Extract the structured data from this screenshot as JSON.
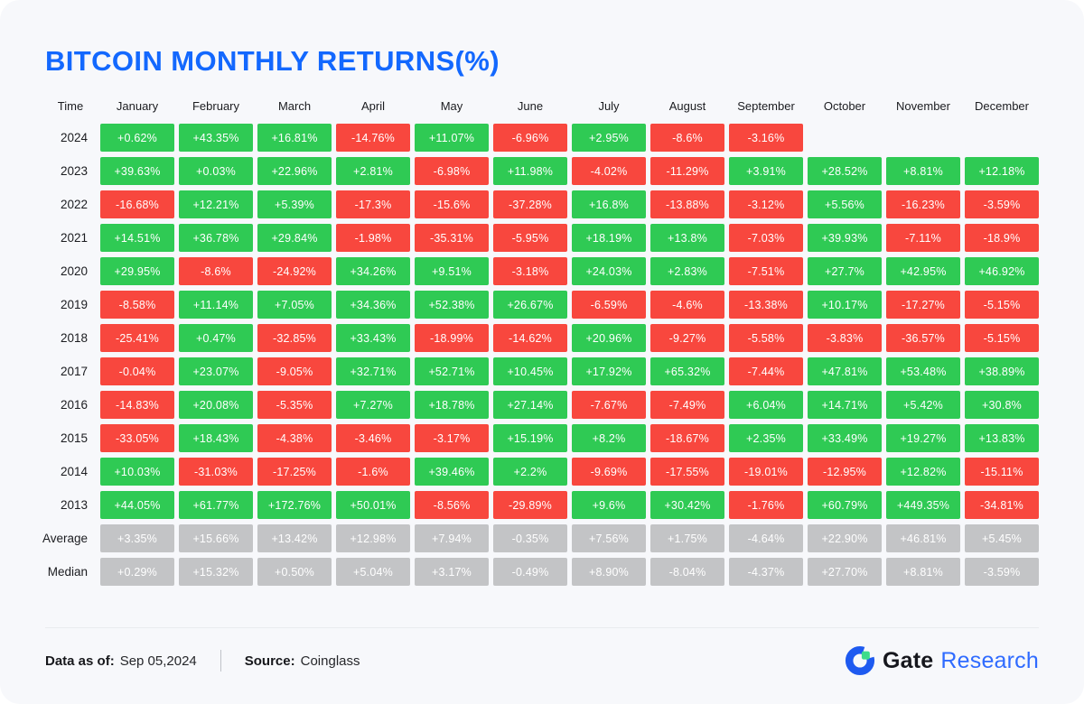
{
  "title": "BITCOIN MONTHLY RETURNS(%)",
  "colors": {
    "positive": "#2fca54",
    "negative": "#f8473e",
    "summary": "#c3c4c6",
    "title_blue": "#1368fe",
    "background": "#f7f8fb",
    "logo_blue": "#1e5af0",
    "logo_green": "#3edc8b"
  },
  "chart_data": {
    "type": "table",
    "title": "BITCOIN MONTHLY RETURNS(%)",
    "time_label": "Time",
    "months": [
      "January",
      "February",
      "March",
      "April",
      "May",
      "June",
      "July",
      "August",
      "September",
      "October",
      "November",
      "December"
    ],
    "rows": [
      {
        "label": "2024",
        "values": [
          "+0.62%",
          "+43.35%",
          "+16.81%",
          "-14.76%",
          "+11.07%",
          "-6.96%",
          "+2.95%",
          "-8.6%",
          "-3.16%",
          null,
          null,
          null
        ]
      },
      {
        "label": "2023",
        "values": [
          "+39.63%",
          "+0.03%",
          "+22.96%",
          "+2.81%",
          "-6.98%",
          "+11.98%",
          "-4.02%",
          "-11.29%",
          "+3.91%",
          "+28.52%",
          "+8.81%",
          "+12.18%"
        ]
      },
      {
        "label": "2022",
        "values": [
          "-16.68%",
          "+12.21%",
          "+5.39%",
          "-17.3%",
          "-15.6%",
          "-37.28%",
          "+16.8%",
          "-13.88%",
          "-3.12%",
          "+5.56%",
          "-16.23%",
          "-3.59%"
        ]
      },
      {
        "label": "2021",
        "values": [
          "+14.51%",
          "+36.78%",
          "+29.84%",
          "-1.98%",
          "-35.31%",
          "-5.95%",
          "+18.19%",
          "+13.8%",
          "-7.03%",
          "+39.93%",
          "-7.11%",
          "-18.9%"
        ]
      },
      {
        "label": "2020",
        "values": [
          "+29.95%",
          "-8.6%",
          "-24.92%",
          "+34.26%",
          "+9.51%",
          "-3.18%",
          "+24.03%",
          "+2.83%",
          "-7.51%",
          "+27.7%",
          "+42.95%",
          "+46.92%"
        ]
      },
      {
        "label": "2019",
        "values": [
          "-8.58%",
          "+11.14%",
          "+7.05%",
          "+34.36%",
          "+52.38%",
          "+26.67%",
          "-6.59%",
          "-4.6%",
          "-13.38%",
          "+10.17%",
          "-17.27%",
          "-5.15%"
        ]
      },
      {
        "label": "2018",
        "values": [
          "-25.41%",
          "+0.47%",
          "-32.85%",
          "+33.43%",
          "-18.99%",
          "-14.62%",
          "+20.96%",
          "-9.27%",
          "-5.58%",
          "-3.83%",
          "-36.57%",
          "-5.15%"
        ]
      },
      {
        "label": "2017",
        "values": [
          "-0.04%",
          "+23.07%",
          "-9.05%",
          "+32.71%",
          "+52.71%",
          "+10.45%",
          "+17.92%",
          "+65.32%",
          "-7.44%",
          "+47.81%",
          "+53.48%",
          "+38.89%"
        ]
      },
      {
        "label": "2016",
        "values": [
          "-14.83%",
          "+20.08%",
          "-5.35%",
          "+7.27%",
          "+18.78%",
          "+27.14%",
          "-7.67%",
          "-7.49%",
          "+6.04%",
          "+14.71%",
          "+5.42%",
          "+30.8%"
        ]
      },
      {
        "label": "2015",
        "values": [
          "-33.05%",
          "+18.43%",
          "-4.38%",
          "-3.46%",
          "-3.17%",
          "+15.19%",
          "+8.2%",
          "-18.67%",
          "+2.35%",
          "+33.49%",
          "+19.27%",
          "+13.83%"
        ]
      },
      {
        "label": "2014",
        "values": [
          "+10.03%",
          "-31.03%",
          "-17.25%",
          "-1.6%",
          "+39.46%",
          "+2.2%",
          "-9.69%",
          "-17.55%",
          "-19.01%",
          "-12.95%",
          "+12.82%",
          "-15.11%"
        ]
      },
      {
        "label": "2013",
        "values": [
          "+44.05%",
          "+61.77%",
          "+172.76%",
          "+50.01%",
          "-8.56%",
          "-29.89%",
          "+9.6%",
          "+30.42%",
          "-1.76%",
          "+60.79%",
          "+449.35%",
          "-34.81%"
        ]
      },
      {
        "label": "Average",
        "summary": true,
        "values": [
          "+3.35%",
          "+15.66%",
          "+13.42%",
          "+12.98%",
          "+7.94%",
          "-0.35%",
          "+7.56%",
          "+1.75%",
          "-4.64%",
          "+22.90%",
          "+46.81%",
          "+5.45%"
        ]
      },
      {
        "label": "Median",
        "summary": true,
        "values": [
          "+0.29%",
          "+15.32%",
          "+0.50%",
          "+5.04%",
          "+3.17%",
          "-0.49%",
          "+8.90%",
          "-8.04%",
          "-4.37%",
          "+27.70%",
          "+8.81%",
          "-3.59%"
        ]
      }
    ]
  },
  "footer": {
    "data_as_of_label": "Data as of:",
    "data_as_of_value": "Sep 05,2024",
    "source_label": "Source:",
    "source_value": "Coinglass",
    "brand_gate": "Gate",
    "brand_research": "Research"
  }
}
